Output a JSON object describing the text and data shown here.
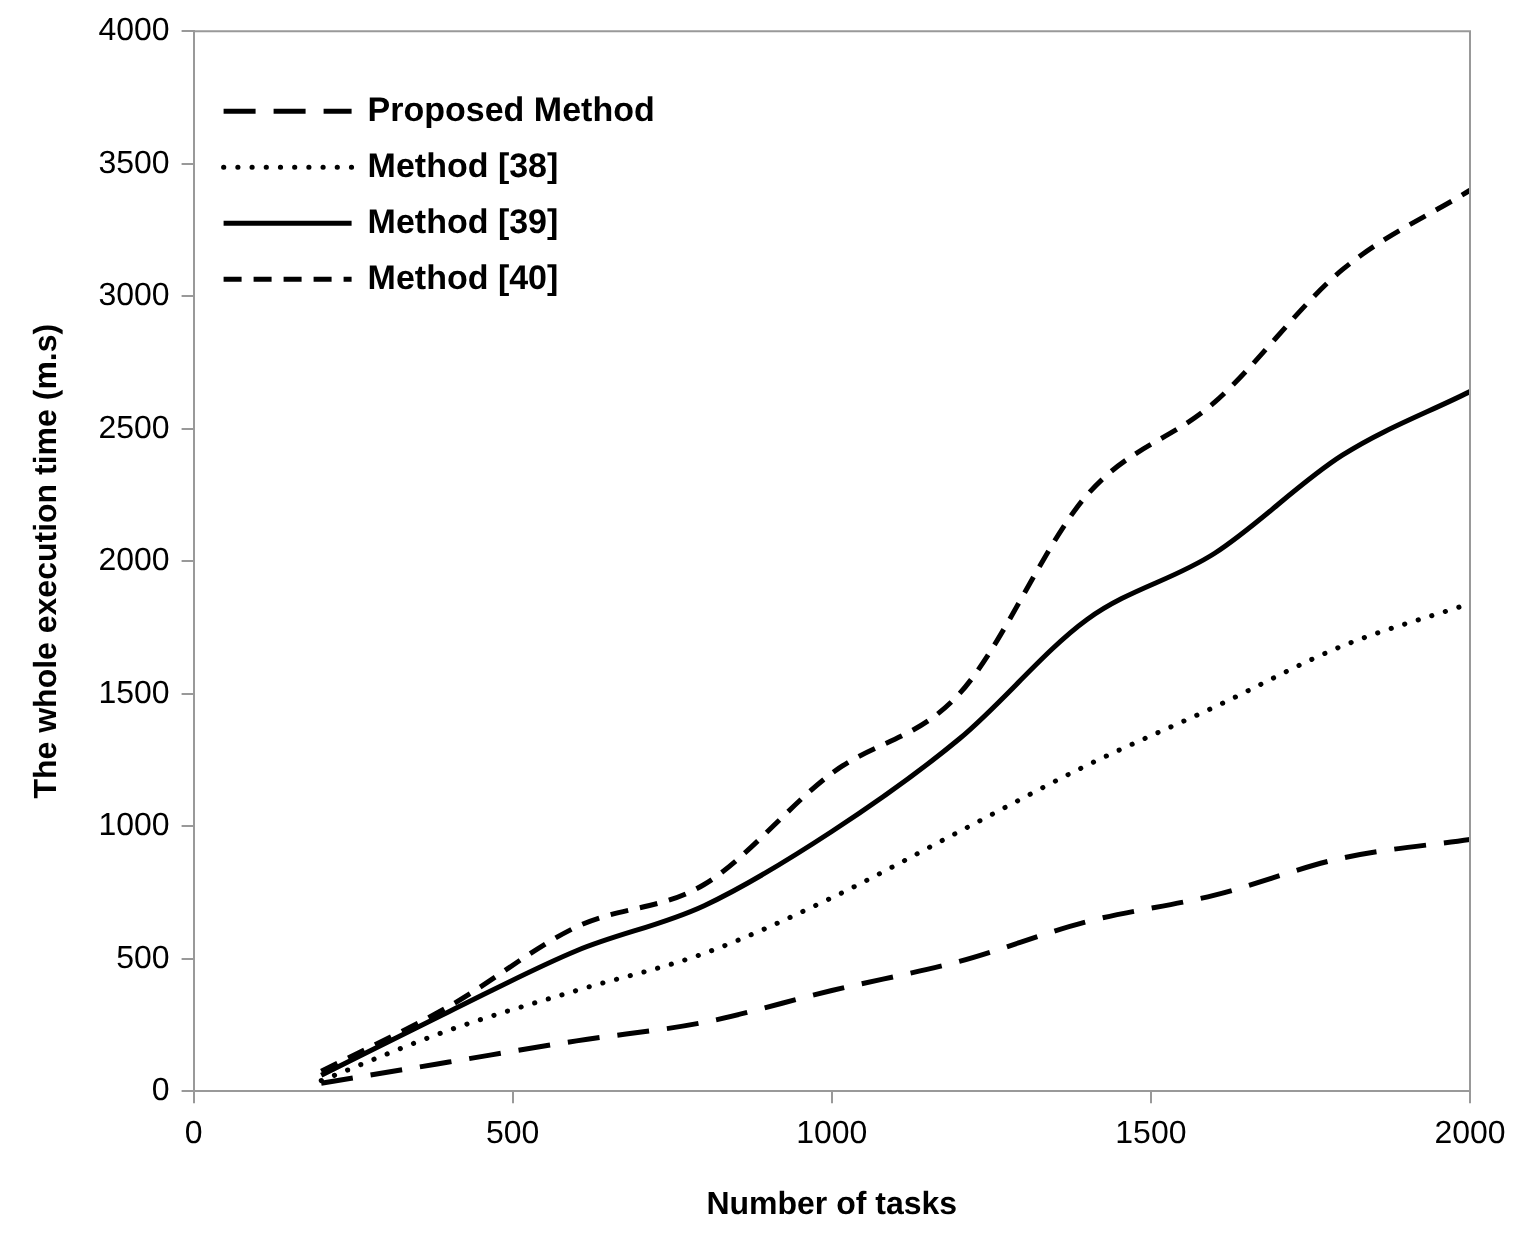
{
  "chart_data": {
    "type": "line",
    "xlabel": "Number of tasks",
    "ylabel": "The whole execution time (m.s)",
    "x": [
      200,
      400,
      600,
      800,
      1000,
      1200,
      1400,
      1600,
      1800,
      2000
    ],
    "xlim": [
      0,
      2000
    ],
    "xticks": [
      0,
      500,
      1000,
      1500,
      2000
    ],
    "ylim": [
      0,
      4000
    ],
    "yticks": [
      0,
      500,
      1000,
      1500,
      2000,
      2500,
      3000,
      3500,
      4000
    ],
    "grid": false,
    "legend": "top left",
    "marker": "none",
    "series": [
      {
        "name": "Proposed Method",
        "color": "#000000",
        "line_style": "longdash",
        "values": [
          30,
          110,
          190,
          260,
          380,
          490,
          640,
          740,
          880,
          950
        ]
      },
      {
        "name": "Method [38]",
        "color": "#000000",
        "line_style": "dotted",
        "values": [
          40,
          230,
          380,
          520,
          730,
          980,
          1230,
          1450,
          1680,
          1840
        ]
      },
      {
        "name": "Method [39]",
        "color": "#000000",
        "line_style": "solid",
        "values": [
          60,
          300,
          530,
          700,
          980,
          1330,
          1780,
          2030,
          2400,
          2640
        ]
      },
      {
        "name": "Method [40]",
        "color": "#000000",
        "line_style": "dashed",
        "values": [
          75,
          320,
          620,
          780,
          1200,
          1500,
          2250,
          2600,
          3100,
          3400
        ]
      }
    ]
  }
}
